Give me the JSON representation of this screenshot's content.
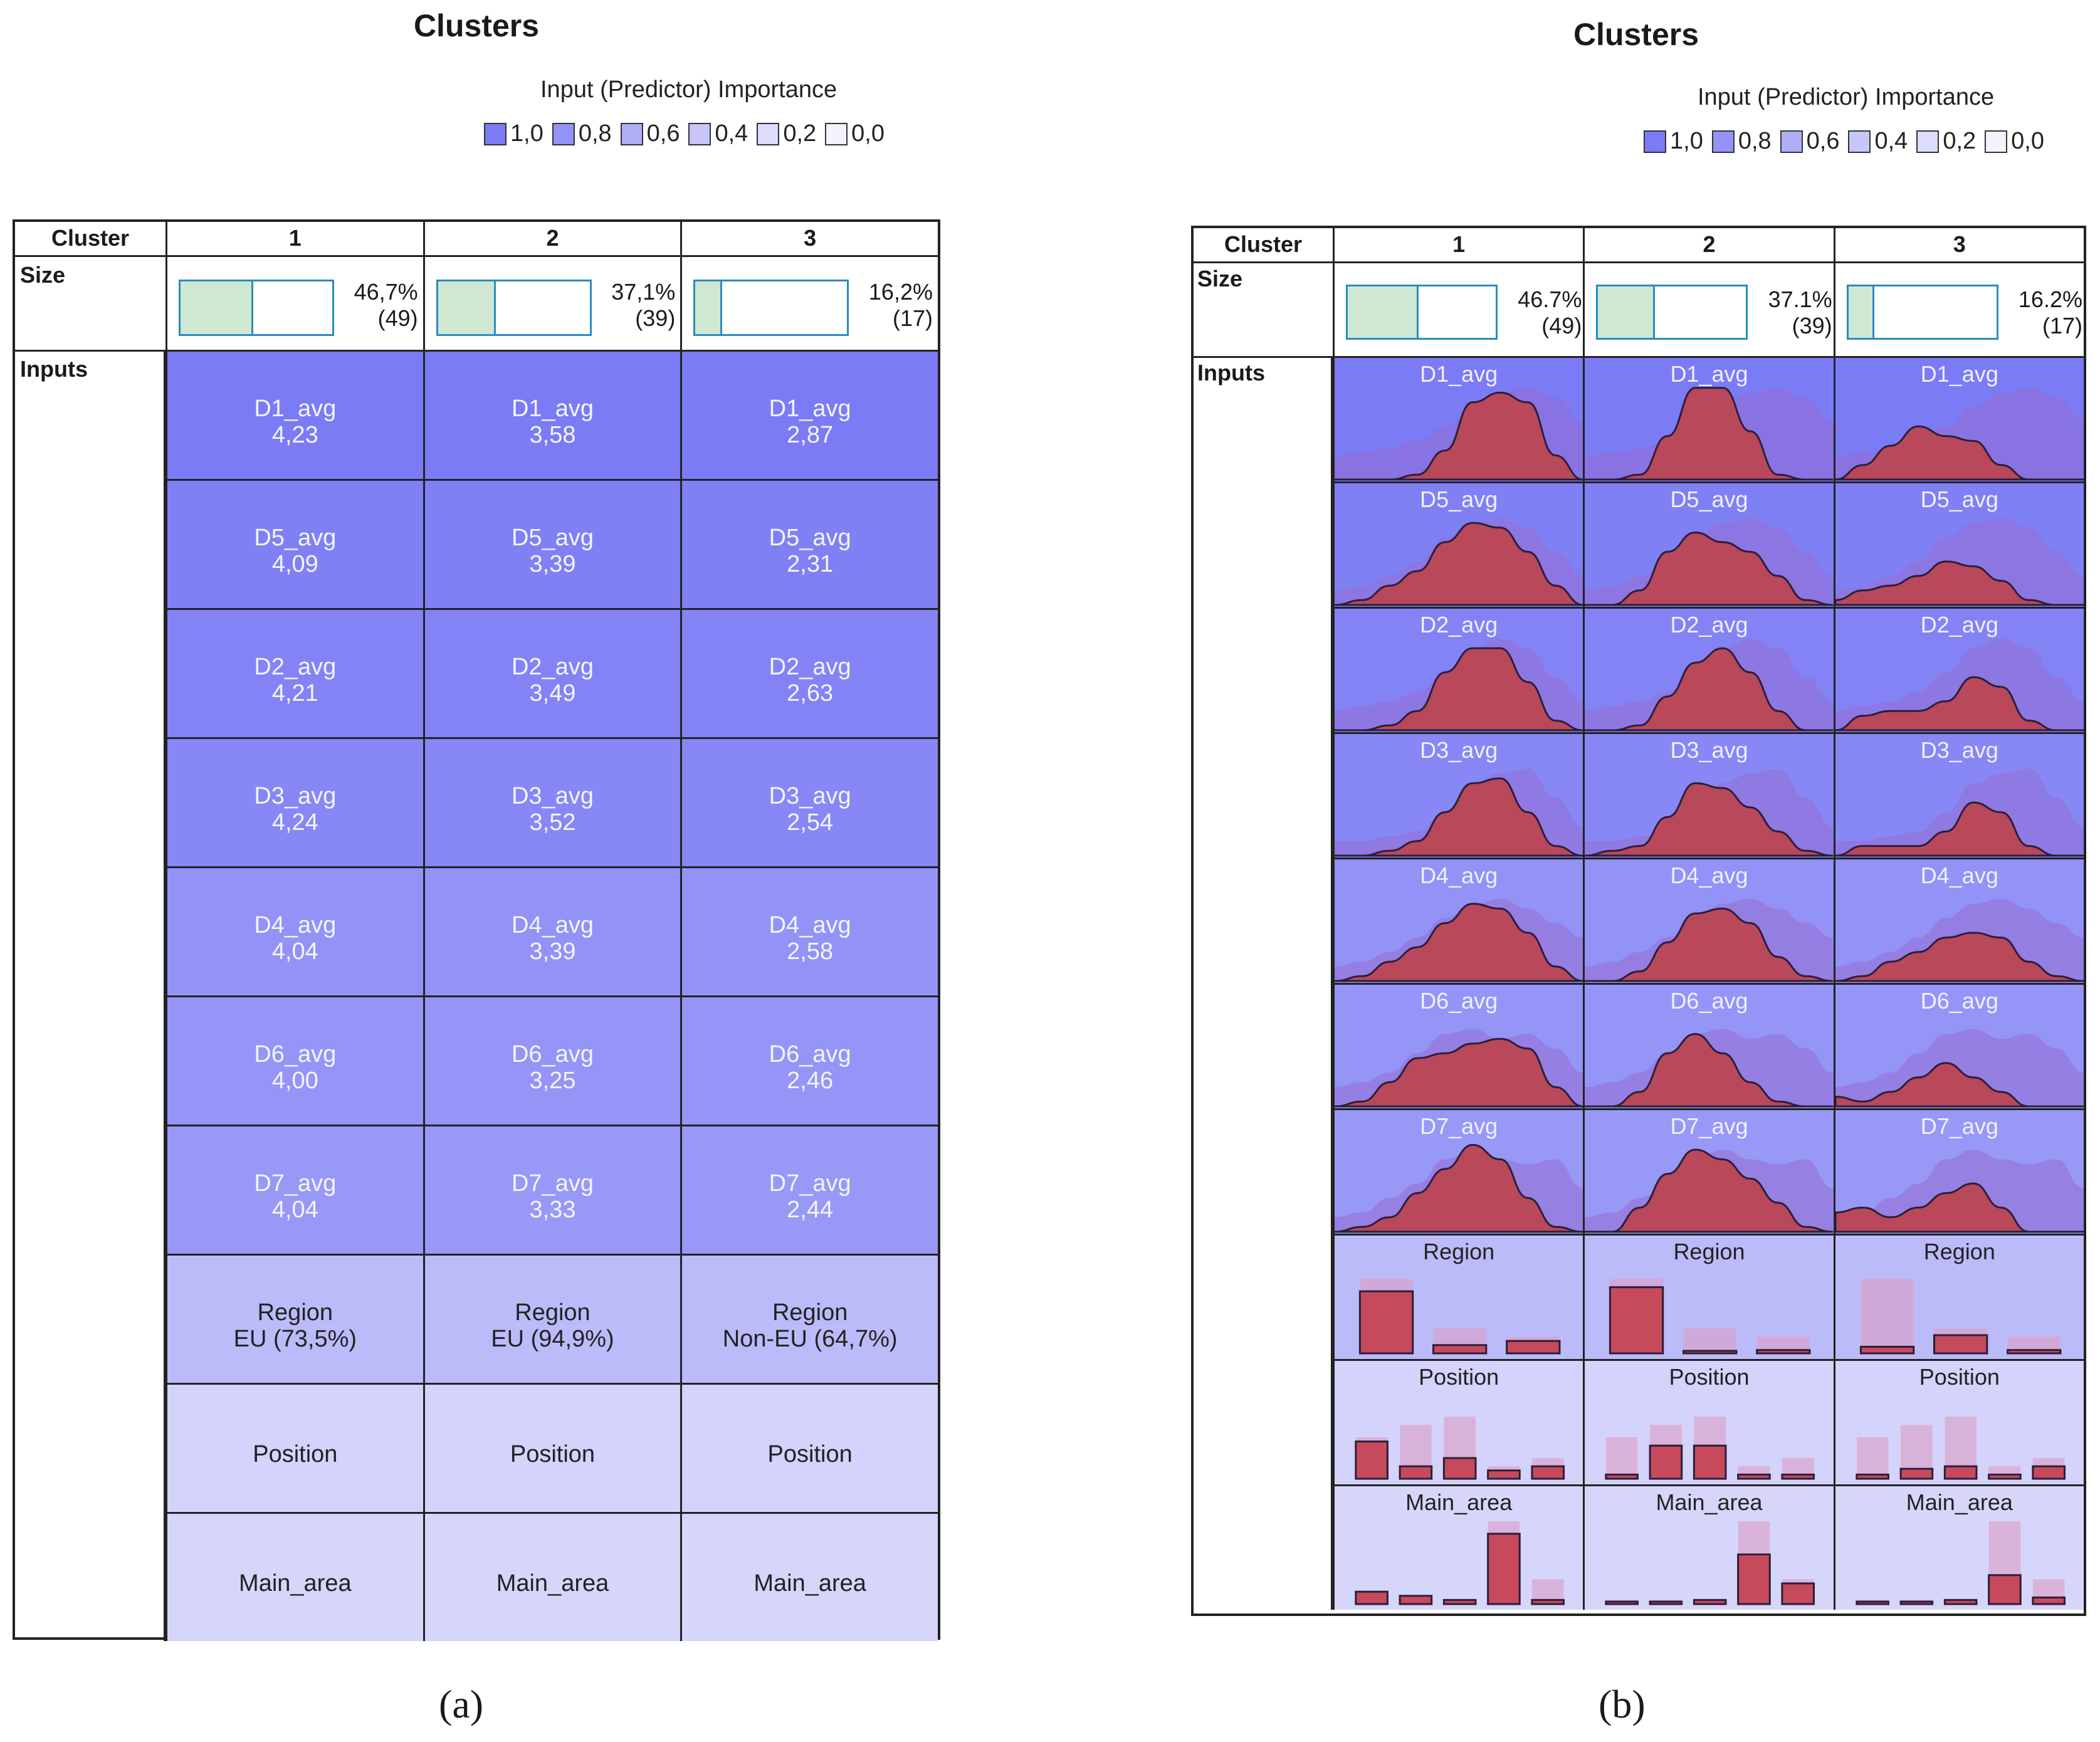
{
  "panel_a": {
    "title": "Clusters",
    "legend_title": "Input (Predictor) Importance",
    "legend": [
      {
        "label": "1,0",
        "color": "#7b7bf5"
      },
      {
        "label": "0,8",
        "color": "#9393f5"
      },
      {
        "label": "0,6",
        "color": "#aeaef7"
      },
      {
        "label": "0,4",
        "color": "#c6c6f9"
      },
      {
        "label": "0,2",
        "color": "#dcdcfb"
      },
      {
        "label": "0,0",
        "color": "#f3f3fd"
      }
    ],
    "header_label": "Cluster",
    "clusters": [
      "1",
      "2",
      "3"
    ],
    "size_label": "Size",
    "sizes": [
      {
        "pct": "46,7%",
        "n": "(49)",
        "frac": 0.467
      },
      {
        "pct": "37,1%",
        "n": "(39)",
        "frac": 0.371
      },
      {
        "pct": "16,2%",
        "n": "(17)",
        "frac": 0.162
      }
    ],
    "inputs_label": "Inputs",
    "rows": [
      {
        "name": "D1_avg",
        "importance": 1.0,
        "values": [
          "4,23",
          "3,58",
          "2,87"
        ]
      },
      {
        "name": "D5_avg",
        "importance": 0.96,
        "values": [
          "4,09",
          "3,39",
          "2,31"
        ]
      },
      {
        "name": "D2_avg",
        "importance": 0.93,
        "values": [
          "4,21",
          "3,49",
          "2,63"
        ]
      },
      {
        "name": "D3_avg",
        "importance": 0.9,
        "values": [
          "4,24",
          "3,52",
          "2,54"
        ]
      },
      {
        "name": "D4_avg",
        "importance": 0.8,
        "values": [
          "4,04",
          "3,39",
          "2,58"
        ]
      },
      {
        "name": "D6_avg",
        "importance": 0.78,
        "values": [
          "4,00",
          "3,25",
          "2,46"
        ]
      },
      {
        "name": "D7_avg",
        "importance": 0.75,
        "values": [
          "4,04",
          "3,33",
          "2,44"
        ]
      },
      {
        "name": "Region",
        "importance": 0.45,
        "values": [
          "EU (73,5%)",
          "EU (94,9%)",
          "Non-EU (64,7%)"
        ]
      },
      {
        "name": "Position",
        "importance": 0.25,
        "values": [
          "",
          "",
          ""
        ]
      },
      {
        "name": "Main_area",
        "importance": 0.22,
        "values": [
          "",
          "",
          ""
        ]
      }
    ],
    "caption": "(a)"
  },
  "panel_b": {
    "title": "Clusters",
    "legend_title": "Input (Predictor) Importance",
    "legend": [
      {
        "label": "1,0",
        "color": "#7b7bf5"
      },
      {
        "label": "0,8",
        "color": "#9393f5"
      },
      {
        "label": "0,6",
        "color": "#aeaef7"
      },
      {
        "label": "0,4",
        "color": "#c6c6f9"
      },
      {
        "label": "0,2",
        "color": "#dcdcfb"
      },
      {
        "label": "0,0",
        "color": "#f3f3fd"
      }
    ],
    "header_label": "Cluster",
    "clusters": [
      "1",
      "2",
      "3"
    ],
    "size_label": "Size",
    "sizes": [
      {
        "pct": "46.7%",
        "n": "(49)",
        "frac": 0.467
      },
      {
        "pct": "37.1%",
        "n": "(39)",
        "frac": 0.371
      },
      {
        "pct": "16.2%",
        "n": "(17)",
        "frac": 0.162
      }
    ],
    "inputs_label": "Inputs",
    "caption": "(b)"
  },
  "chart_data": [
    {
      "type": "table",
      "title": "Clusters",
      "legend_title": "Input (Predictor) Importance",
      "columns": [
        "Cluster",
        "1",
        "2",
        "3"
      ],
      "sizes_percent": [
        46.7,
        37.1,
        16.2
      ],
      "sizes_n": [
        49,
        39,
        17
      ],
      "means": {
        "D1_avg": [
          4.23,
          3.58,
          2.87
        ],
        "D5_avg": [
          4.09,
          3.39,
          2.31
        ],
        "D2_avg": [
          4.21,
          3.49,
          2.63
        ],
        "D3_avg": [
          4.24,
          3.52,
          2.54
        ],
        "D4_avg": [
          4.04,
          3.39,
          2.58
        ],
        "D6_avg": [
          4.0,
          3.25,
          2.46
        ],
        "D7_avg": [
          4.04,
          3.33,
          2.44
        ]
      },
      "modes": {
        "Region": [
          "EU (73,5%)",
          "EU (94,9%)",
          "Non-EU (64,7%)"
        ]
      }
    },
    {
      "type": "area",
      "title": "Clusters",
      "legend_title": "Input (Predictor) Importance",
      "columns": [
        "Cluster",
        "1",
        "2",
        "3"
      ],
      "continuous": [
        {
          "name": "D1_avg",
          "importance": 1.0,
          "overall": [
            0.25,
            0.28,
            0.32,
            0.4,
            0.55,
            0.75,
            0.9,
            0.95,
            0.85,
            0.6
          ],
          "clusters": [
            [
              0,
              0,
              0,
              0.05,
              0.3,
              0.8,
              0.9,
              0.8,
              0.25,
              0
            ],
            [
              0,
              0,
              0.05,
              0.45,
              0.95,
              0.95,
              0.5,
              0.05,
              0,
              0
            ],
            [
              0,
              0.15,
              0.35,
              0.55,
              0.45,
              0.4,
              0.15,
              0,
              0,
              0
            ]
          ]
        },
        {
          "name": "D5_avg",
          "importance": 0.96,
          "overall": [
            0.15,
            0.2,
            0.3,
            0.45,
            0.7,
            0.85,
            0.9,
            0.8,
            0.55,
            0.3
          ],
          "clusters": [
            [
              0,
              0.05,
              0.2,
              0.35,
              0.65,
              0.85,
              0.8,
              0.55,
              0.2,
              0
            ],
            [
              0,
              0,
              0.15,
              0.55,
              0.75,
              0.65,
              0.55,
              0.3,
              0.05,
              0
            ],
            [
              0.05,
              0.15,
              0.2,
              0.3,
              0.45,
              0.4,
              0.25,
              0.05,
              0,
              0
            ]
          ]
        },
        {
          "name": "D2_avg",
          "importance": 0.93,
          "overall": [
            0.2,
            0.25,
            0.3,
            0.4,
            0.6,
            0.85,
            0.95,
            0.85,
            0.55,
            0.3
          ],
          "clusters": [
            [
              0,
              0,
              0.05,
              0.2,
              0.6,
              0.85,
              0.85,
              0.5,
              0.1,
              0
            ],
            [
              0,
              0,
              0.05,
              0.35,
              0.7,
              0.85,
              0.6,
              0.2,
              0,
              0
            ],
            [
              0,
              0.15,
              0.2,
              0.2,
              0.3,
              0.55,
              0.45,
              0.1,
              0,
              0
            ]
          ]
        },
        {
          "name": "D3_avg",
          "importance": 0.9,
          "overall": [
            0.15,
            0.15,
            0.2,
            0.25,
            0.45,
            0.75,
            0.85,
            0.9,
            0.6,
            0.3
          ],
          "clusters": [
            [
              0,
              0,
              0.05,
              0.15,
              0.45,
              0.75,
              0.8,
              0.45,
              0.1,
              0
            ],
            [
              0,
              0.05,
              0.1,
              0.4,
              0.75,
              0.7,
              0.5,
              0.25,
              0.05,
              0
            ],
            [
              0,
              0.1,
              0.1,
              0.1,
              0.25,
              0.55,
              0.45,
              0.1,
              0,
              0
            ]
          ]
        },
        {
          "name": "D4_avg",
          "importance": 0.8,
          "overall": [
            0.15,
            0.2,
            0.3,
            0.45,
            0.65,
            0.8,
            0.85,
            0.75,
            0.6,
            0.45
          ],
          "clusters": [
            [
              0,
              0.05,
              0.2,
              0.35,
              0.6,
              0.8,
              0.75,
              0.5,
              0.15,
              0
            ],
            [
              0,
              0,
              0.1,
              0.4,
              0.7,
              0.75,
              0.6,
              0.25,
              0.05,
              0
            ],
            [
              0,
              0.05,
              0.2,
              0.3,
              0.45,
              0.5,
              0.45,
              0.2,
              0.05,
              0
            ]
          ]
        },
        {
          "name": "D6_avg",
          "importance": 0.78,
          "overall": [
            0.2,
            0.25,
            0.35,
            0.55,
            0.75,
            0.8,
            0.7,
            0.75,
            0.6,
            0.35
          ],
          "clusters": [
            [
              0,
              0.05,
              0.25,
              0.5,
              0.55,
              0.65,
              0.7,
              0.6,
              0.2,
              0
            ],
            [
              0,
              0,
              0.15,
              0.55,
              0.75,
              0.55,
              0.25,
              0.05,
              0,
              0
            ],
            [
              0.1,
              0.05,
              0.15,
              0.3,
              0.45,
              0.3,
              0.15,
              0,
              0,
              0
            ]
          ]
        },
        {
          "name": "D7_avg",
          "importance": 0.75,
          "overall": [
            0.15,
            0.2,
            0.35,
            0.5,
            0.75,
            0.85,
            0.75,
            0.7,
            0.75,
            0.45
          ],
          "clusters": [
            [
              0,
              0.05,
              0.15,
              0.4,
              0.65,
              0.9,
              0.75,
              0.35,
              0.05,
              0
            ],
            [
              0,
              0,
              0.25,
              0.6,
              0.85,
              0.75,
              0.55,
              0.3,
              0.05,
              0
            ],
            [
              0.2,
              0.25,
              0.15,
              0.25,
              0.4,
              0.5,
              0.25,
              0,
              0,
              0
            ]
          ]
        }
      ],
      "categorical": [
        {
          "name": "Region",
          "importance": 0.45,
          "overall": [
            0.9,
            0.3,
            0.2
          ],
          "clusters": [
            [
              0.75,
              0.1,
              0.15
            ],
            [
              0.8,
              0.02,
              0.04
            ],
            [
              0.08,
              0.22,
              0.04
            ]
          ]
        },
        {
          "name": "Position",
          "importance": 0.25,
          "overall": [
            0.5,
            0.65,
            0.75,
            0.15,
            0.25
          ],
          "clusters": [
            [
              0.45,
              0.15,
              0.25,
              0.1,
              0.15
            ],
            [
              0.05,
              0.4,
              0.4,
              0.05,
              0.05
            ],
            [
              0.05,
              0.12,
              0.15,
              0.05,
              0.15
            ]
          ]
        },
        {
          "name": "Main_area",
          "importance": 0.22,
          "overall": [
            0.05,
            0.05,
            0.05,
            1.0,
            0.3
          ],
          "clusters": [
            [
              0.15,
              0.1,
              0.05,
              0.85,
              0.05
            ],
            [
              0.03,
              0.03,
              0.05,
              0.6,
              0.25
            ],
            [
              0.03,
              0.03,
              0.05,
              0.35,
              0.08
            ]
          ]
        }
      ]
    }
  ]
}
